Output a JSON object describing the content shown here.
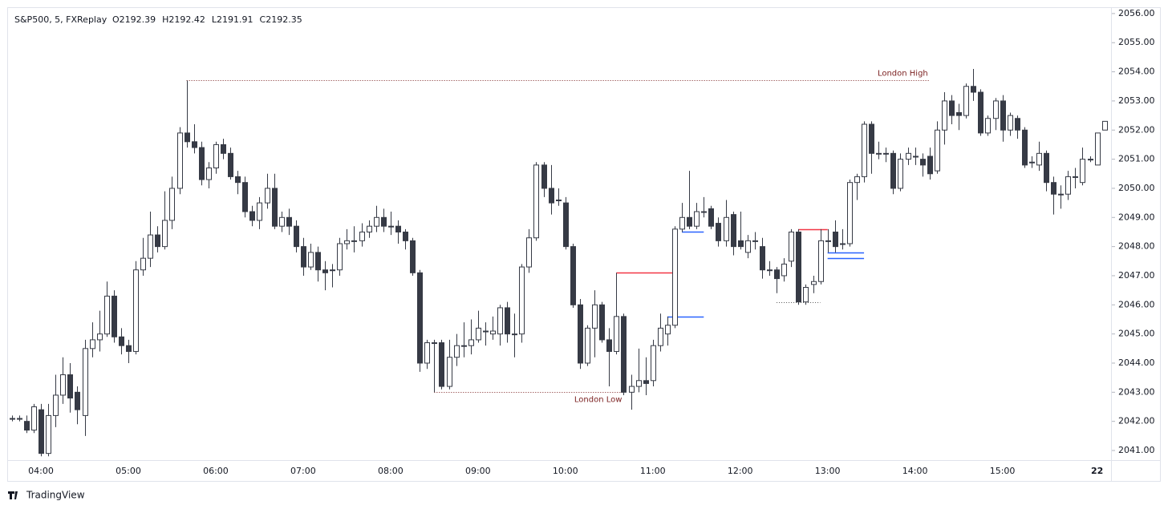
{
  "chart_data": {
    "type": "candlestick",
    "title": "S&P500, 5, FXReplay",
    "legend_values": [
      "O2192.39",
      "H2192.42",
      "L2191.91",
      "C2192.35"
    ],
    "brand": "TradingView",
    "categories": [
      "03:40",
      "03:45",
      "03:50",
      "03:55",
      "04:00",
      "04:05",
      "04:10",
      "04:15",
      "04:20",
      "04:25",
      "04:30",
      "04:35",
      "04:40",
      "04:45",
      "04:50",
      "04:55",
      "05:00",
      "05:05",
      "05:10",
      "05:15",
      "05:20",
      "05:25",
      "05:30",
      "05:35",
      "05:40",
      "05:45",
      "05:50",
      "05:55",
      "06:00",
      "06:05",
      "06:10",
      "06:15",
      "06:20",
      "06:25",
      "06:30",
      "06:35",
      "06:40",
      "06:45",
      "06:50",
      "06:55",
      "07:00",
      "07:05",
      "07:10",
      "07:15",
      "07:20",
      "07:25",
      "07:30",
      "07:35",
      "07:40",
      "07:45",
      "07:50",
      "07:55",
      "08:00",
      "08:05",
      "08:10",
      "08:15",
      "08:20",
      "08:25",
      "08:30",
      "08:35",
      "08:40",
      "08:45",
      "08:50",
      "08:55",
      "09:00",
      "09:05",
      "09:10",
      "09:15",
      "09:20",
      "09:25",
      "09:30",
      "09:35",
      "09:40",
      "09:45",
      "09:50",
      "09:55",
      "10:00",
      "10:05",
      "10:10",
      "10:15",
      "10:20",
      "10:25",
      "10:30",
      "10:35",
      "10:40",
      "10:45",
      "10:50",
      "10:55",
      "11:00",
      "11:05",
      "11:10",
      "11:15",
      "11:20",
      "11:25",
      "11:30",
      "11:35",
      "11:40",
      "11:45",
      "11:50",
      "11:55",
      "12:00",
      "12:05",
      "12:10",
      "12:15",
      "12:20",
      "12:25",
      "12:30",
      "12:35",
      "12:40",
      "12:45",
      "12:50",
      "12:55",
      "13:00",
      "13:05",
      "13:10",
      "13:15",
      "13:20",
      "13:25",
      "13:30",
      "13:35",
      "13:40",
      "13:45",
      "13:50",
      "13:55",
      "14:00",
      "14:05",
      "14:10",
      "14:15",
      "14:20",
      "14:25",
      "14:30",
      "14:35",
      "14:40",
      "14:45",
      "14:50",
      "14:55",
      "15:00",
      "15:05",
      "15:10",
      "15:15",
      "15:20",
      "15:25",
      "15:30",
      "15:35",
      "15:40",
      "15:45",
      "15:50",
      "15:55",
      "16:00",
      "16:05",
      "16:10"
    ],
    "open": [
      2042.1,
      2042.1,
      2042.0,
      2041.7,
      2042.4,
      2040.9,
      2042.2,
      2042.9,
      2043.6,
      2043.0,
      2042.2,
      2044.5,
      2044.8,
      2045.0,
      2046.3,
      2044.9,
      2044.6,
      2044.4,
      2047.2,
      2047.6,
      2048.4,
      2048.0,
      2048.9,
      2050.0,
      2051.9,
      2051.6,
      2051.4,
      2050.3,
      2050.7,
      2051.5,
      2051.2,
      2050.4,
      2050.2,
      2049.2,
      2048.9,
      2049.5,
      2050.0,
      2048.7,
      2049.0,
      2048.7,
      2048.0,
      2047.3,
      2047.8,
      2047.2,
      2047.2,
      2047.2,
      2048.1,
      2048.2,
      2048.2,
      2048.5,
      2048.7,
      2049.0,
      2048.7,
      2048.7,
      2048.5,
      2048.2,
      2047.1,
      2044.0,
      2044.7,
      2044.7,
      2043.2,
      2044.2,
      2044.6,
      2044.6,
      2044.8,
      2045.1,
      2045.0,
      2045.0,
      2045.9,
      2045.0,
      2045.0,
      2047.3,
      2048.3,
      2050.8,
      2050.0,
      2049.6,
      2049.5,
      2048.0,
      2046.0,
      2044.0,
      2045.2,
      2046.0,
      2044.8,
      2044.4,
      2045.6,
      2043.0,
      2043.2,
      2043.4,
      2043.4,
      2044.6,
      2045.0,
      2045.3,
      2048.6,
      2049.0,
      2048.7,
      2049.2,
      2049.3,
      2048.8,
      2048.2,
      2049.1,
      2048.2,
      2047.8,
      2048.2,
      2048.0,
      2047.2,
      2047.2,
      2047.0,
      2047.5,
      2048.5,
      2046.1,
      2046.7,
      2046.8,
      2048.2,
      2048.5,
      2048.1,
      2048.1,
      2050.2,
      2050.4,
      2052.2,
      2051.2,
      2051.2,
      2051.2,
      2050.0,
      2051.0,
      2051.1,
      2051.0,
      2051.1,
      2050.6,
      2052.0,
      2053.0,
      2052.6,
      2052.5,
      2053.5,
      2053.3,
      2051.9,
      2052.4,
      2053.0,
      2052.0,
      2052.4,
      2052.0,
      2050.9,
      2050.8,
      2051.2,
      2050.2,
      2049.8,
      2049.8,
      2050.4,
      2050.2,
      2051.0,
      2050.8,
      2052.0
    ],
    "high": [
      2042.2,
      2042.2,
      2042.2,
      2042.6,
      2042.6,
      2042.6,
      2043.6,
      2044.2,
      2044.0,
      2043.2,
      2044.8,
      2045.4,
      2045.8,
      2046.8,
      2046.5,
      2045.2,
      2044.8,
      2047.5,
      2048.3,
      2049.2,
      2048.7,
      2049.9,
      2050.4,
      2052.1,
      2053.7,
      2052.2,
      2051.6,
      2050.9,
      2051.6,
      2051.7,
      2051.4,
      2050.6,
      2050.4,
      2049.4,
      2049.7,
      2050.5,
      2050.5,
      2049.2,
      2049.3,
      2048.9,
      2048.3,
      2048.1,
      2048.0,
      2047.5,
      2047.4,
      2048.3,
      2048.6,
      2048.7,
      2048.8,
      2048.9,
      2049.4,
      2049.3,
      2049.2,
      2048.9,
      2048.6,
      2048.3,
      2047.2,
      2044.8,
      2044.8,
      2044.8,
      2044.8,
      2045.0,
      2045.4,
      2045.5,
      2045.8,
      2045.4,
      2045.6,
      2046.0,
      2046.1,
      2045.7,
      2047.4,
      2048.6,
      2050.9,
      2050.9,
      2050.8,
      2050.0,
      2049.7,
      2048.1,
      2046.2,
      2045.3,
      2046.5,
      2046.1,
      2045.2,
      2047.1,
      2045.7,
      2043.6,
      2044.5,
      2044.2,
      2044.8,
      2045.7,
      2045.6,
      2048.7,
      2049.5,
      2050.6,
      2049.5,
      2049.7,
      2049.4,
      2049.0,
      2049.6,
      2049.2,
      2049.2,
      2048.4,
      2048.5,
      2048.3,
      2047.5,
      2047.3,
      2047.6,
      2048.6,
      2048.6,
      2046.7,
      2047.0,
      2048.6,
      2048.6,
      2048.9,
      2048.6,
      2050.3,
      2050.5,
      2052.3,
      2052.3,
      2051.6,
      2051.4,
      2051.3,
      2051.2,
      2051.4,
      2051.4,
      2051.2,
      2051.4,
      2052.3,
      2053.3,
      2053.2,
      2052.9,
      2053.6,
      2054.1,
      2053.4,
      2052.5,
      2053.1,
      2053.2,
      2052.6,
      2052.5,
      2052.1,
      2051.1,
      2051.6,
      2051.3,
      2050.4,
      2050.1,
      2050.6,
      2050.7,
      2051.4,
      2051.1,
      2051.9,
      2052.3
    ],
    "low": [
      2042.0,
      2042.0,
      2041.6,
      2041.6,
      2040.8,
      2040.8,
      2041.8,
      2042.6,
      2042.3,
      2041.9,
      2041.5,
      2044.2,
      2044.4,
      2044.9,
      2044.7,
      2044.3,
      2044.0,
      2044.3,
      2047.0,
      2047.3,
      2047.8,
      2047.9,
      2048.6,
      2049.8,
      2051.4,
      2051.2,
      2050.1,
      2050.0,
      2050.5,
      2051.0,
      2050.3,
      2049.8,
      2049.0,
      2048.7,
      2048.6,
      2049.3,
      2048.6,
      2048.5,
      2048.4,
      2047.8,
      2047.0,
      2047.2,
      2046.8,
      2046.5,
      2046.6,
      2047.0,
      2047.9,
      2047.8,
      2048.0,
      2048.3,
      2048.5,
      2048.5,
      2048.4,
      2048.1,
      2047.9,
      2047.0,
      2043.7,
      2043.8,
      2043.0,
      2043.1,
      2043.1,
      2043.9,
      2044.2,
      2044.3,
      2044.7,
      2044.6,
      2044.8,
      2044.6,
      2044.7,
      2044.2,
      2044.7,
      2047.1,
      2048.2,
      2049.7,
      2049.1,
      2049.4,
      2047.9,
      2045.9,
      2043.8,
      2043.9,
      2044.2,
      2044.7,
      2043.2,
      2044.3,
      2042.9,
      2042.4,
      2043.0,
      2042.9,
      2043.2,
      2044.4,
      2044.6,
      2045.2,
      2048.5,
      2048.6,
      2048.6,
      2049.0,
      2048.6,
      2048.0,
      2048.0,
      2047.7,
      2047.9,
      2047.6,
      2047.9,
      2046.9,
      2047.0,
      2046.4,
      2046.8,
      2047.3,
      2046.0,
      2046.0,
      2046.4,
      2046.7,
      2047.8,
      2047.8,
      2047.9,
      2048.0,
      2049.6,
      2050.2,
      2050.5,
      2051.0,
      2050.9,
      2049.8,
      2049.9,
      2050.8,
      2050.8,
      2050.4,
      2050.3,
      2050.5,
      2051.5,
      2052.2,
      2052.0,
      2052.4,
      2053.0,
      2051.8,
      2051.8,
      2052.0,
      2051.6,
      2051.8,
      2051.7,
      2050.7,
      2050.7,
      2050.6,
      2049.9,
      2049.1,
      2049.3,
      2049.6,
      2050.0,
      2050.1,
      2050.9,
      2050.8,
      2052.0
    ],
    "close": [
      2042.1,
      2042.1,
      2041.7,
      2042.5,
      2040.9,
      2042.2,
      2042.9,
      2043.6,
      2042.8,
      2042.4,
      2044.5,
      2044.8,
      2045.0,
      2046.3,
      2044.9,
      2044.6,
      2044.4,
      2047.2,
      2047.6,
      2048.4,
      2048.0,
      2048.9,
      2050.0,
      2051.9,
      2051.6,
      2051.4,
      2050.3,
      2050.7,
      2051.5,
      2051.2,
      2050.4,
      2050.2,
      2049.2,
      2048.9,
      2049.5,
      2050.0,
      2048.7,
      2049.0,
      2048.7,
      2048.0,
      2047.3,
      2047.8,
      2047.2,
      2047.1,
      2047.2,
      2048.1,
      2048.2,
      2048.2,
      2048.5,
      2048.7,
      2049.0,
      2048.7,
      2048.7,
      2048.5,
      2048.2,
      2047.1,
      2044.0,
      2044.7,
      2044.7,
      2043.2,
      2044.2,
      2044.6,
      2044.6,
      2044.8,
      2045.2,
      2045.1,
      2045.1,
      2045.9,
      2045.0,
      2045.0,
      2047.3,
      2048.3,
      2050.8,
      2050.0,
      2049.5,
      2049.6,
      2048.0,
      2046.0,
      2044.0,
      2045.2,
      2046.0,
      2044.8,
      2044.4,
      2045.6,
      2043.0,
      2043.2,
      2043.4,
      2043.3,
      2044.6,
      2045.2,
      2045.3,
      2048.6,
      2049.0,
      2048.7,
      2049.2,
      2049.2,
      2048.7,
      2048.2,
      2049.0,
      2048.0,
      2048.0,
      2048.2,
      2048.2,
      2047.2,
      2047.2,
      2046.9,
      2047.4,
      2048.5,
      2046.1,
      2046.6,
      2046.8,
      2048.2,
      2048.2,
      2048.0,
      2048.1,
      2050.2,
      2050.4,
      2052.2,
      2051.2,
      2051.2,
      2051.2,
      2050.0,
      2051.0,
      2051.2,
      2051.1,
      2050.8,
      2050.5,
      2052.0,
      2053.0,
      2052.5,
      2052.5,
      2053.5,
      2053.3,
      2051.9,
      2052.4,
      2053.0,
      2052.0,
      2052.5,
      2052.0,
      2050.8,
      2050.9,
      2051.2,
      2050.2,
      2049.8,
      2049.8,
      2050.4,
      2050.4,
      2051.0,
      2051.0,
      2051.9,
      2052.3
    ],
    "up_color": "#ffffff",
    "down_color": "#363a45",
    "wick_color": "#363a45",
    "ylim": [
      2040.67,
      2056.19
    ],
    "yticks": [
      {
        "value": 2041,
        "label": "2041.00"
      },
      {
        "value": 2042,
        "label": "2042.00"
      },
      {
        "value": 2043,
        "label": "2043.00"
      },
      {
        "value": 2044,
        "label": "2044.00"
      },
      {
        "value": 2045,
        "label": "2045.00"
      },
      {
        "value": 2046,
        "label": "2046.00"
      },
      {
        "value": 2047,
        "label": "2047.00"
      },
      {
        "value": 2048,
        "label": "2048.00"
      },
      {
        "value": 2049,
        "label": "2049.00"
      },
      {
        "value": 2050,
        "label": "2050.00"
      },
      {
        "value": 2051,
        "label": "2051.00"
      },
      {
        "value": 2052,
        "label": "2052.00"
      },
      {
        "value": 2053,
        "label": "2053.00"
      },
      {
        "value": 2054,
        "label": "2054.00"
      },
      {
        "value": 2055,
        "label": "2055.00"
      },
      {
        "value": 2056,
        "label": "2056.00"
      }
    ],
    "xticks": [
      "04:00",
      "05:00",
      "06:00",
      "07:00",
      "08:00",
      "09:00",
      "10:00",
      "11:00",
      "12:00",
      "13:00",
      "14:00",
      "15:00",
      {
        "value": "16:05",
        "label": "22"
      }
    ],
    "levels": [
      {
        "text": "London High",
        "price": 2053.7,
        "from": "05:40",
        "to": "14:10",
        "color": "#7a1f1f",
        "style": "dotted"
      },
      {
        "text": "London Low",
        "price": 2043.0,
        "from": "08:30",
        "to": "10:40",
        "color": "#7a1f1f",
        "style": "dotted"
      },
      {
        "price": 2047.1,
        "from": "10:35",
        "to": "11:15",
        "color": "#f23645",
        "style": "solid"
      },
      {
        "price": 2045.6,
        "from": "11:10",
        "to": "11:35",
        "color": "#2962ff",
        "style": "solid"
      },
      {
        "price": 2048.5,
        "from": "11:20",
        "to": "11:35",
        "color": "#2962ff",
        "style": "solid"
      },
      {
        "price": 2048.6,
        "from": "12:40",
        "to": "13:00",
        "color": "#f23645",
        "style": "solid"
      },
      {
        "price": 2047.8,
        "from": "13:00",
        "to": "13:25",
        "color": "#2962ff",
        "style": "solid"
      },
      {
        "price": 2047.6,
        "from": "13:00",
        "to": "13:25",
        "color": "#2962ff",
        "style": "solid"
      },
      {
        "price": 2046.1,
        "from": "12:25",
        "to": "12:55",
        "color": "#555555",
        "style": "dotted"
      }
    ]
  }
}
